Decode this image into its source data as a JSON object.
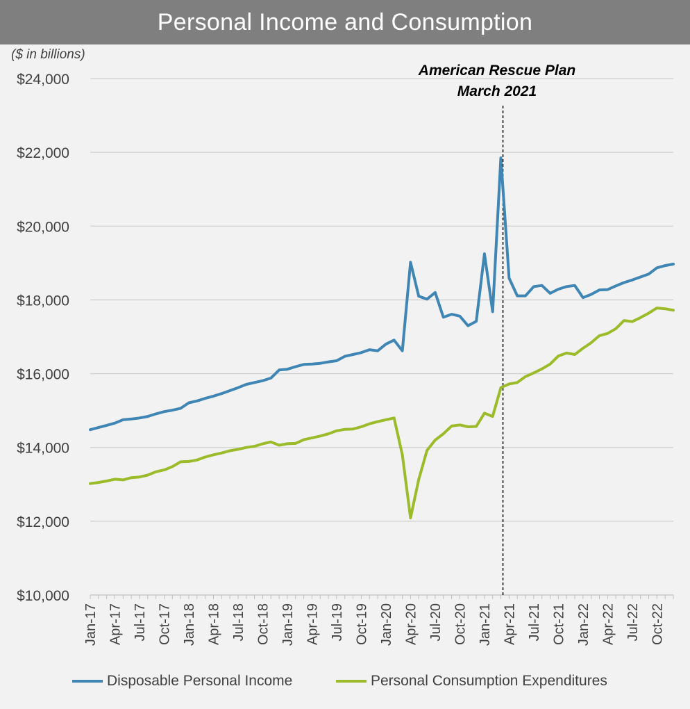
{
  "chart_data": {
    "type": "line",
    "title": "Personal Income and Consumption",
    "units_note": "($ in billions)",
    "ylim": [
      10000,
      24000
    ],
    "y_ticks": [
      10000,
      12000,
      14000,
      16000,
      18000,
      20000,
      22000,
      24000
    ],
    "y_tick_labels": [
      "$10,000",
      "$12,000",
      "$14,000",
      "$16,000",
      "$18,000",
      "$20,000",
      "$22,000",
      "$24,000"
    ],
    "x_tick_labels": [
      "Jan-17",
      "Apr-17",
      "Jul-17",
      "Oct-17",
      "Jan-18",
      "Apr-18",
      "Jul-18",
      "Oct-18",
      "Jan-19",
      "Apr-19",
      "Jul-19",
      "Oct-19",
      "Jan-20",
      "Apr-20",
      "Jul-20",
      "Oct-20",
      "Jan-21",
      "Apr-21",
      "Jul-21",
      "Oct-21",
      "Jan-22",
      "Apr-22",
      "Jul-22",
      "Oct-22"
    ],
    "months": 72,
    "grid": true,
    "legend_placement": "bottom",
    "annotation": {
      "line1": "American Rescue Plan",
      "line2": "March 2021",
      "month_index": 50
    },
    "series": [
      {
        "name": "Disposable Personal Income",
        "color": "#3f86b5",
        "values": [
          14480,
          14540,
          14600,
          14660,
          14750,
          14770,
          14800,
          14840,
          14910,
          14970,
          15010,
          15060,
          15210,
          15260,
          15330,
          15390,
          15460,
          15540,
          15620,
          15710,
          15760,
          15810,
          15880,
          16100,
          16120,
          16190,
          16250,
          16260,
          16280,
          16320,
          16350,
          16470,
          16520,
          16570,
          16650,
          16620,
          16800,
          16910,
          16620,
          19020,
          18100,
          18020,
          18200,
          17530,
          17610,
          17560,
          17300,
          17420,
          19250,
          17680,
          21850,
          18590,
          18110,
          18110,
          18360,
          18390,
          18180,
          18290,
          18360,
          18390,
          18060,
          18150,
          18270,
          18280,
          18380,
          18470,
          18540,
          18620,
          18700,
          18870,
          18930,
          18970
        ]
      },
      {
        "name": "Personal Consumption Expenditures",
        "color": "#9bbb2a",
        "values": [
          13020,
          13050,
          13090,
          13140,
          13120,
          13180,
          13200,
          13250,
          13340,
          13390,
          13480,
          13610,
          13620,
          13660,
          13740,
          13800,
          13850,
          13910,
          13950,
          14000,
          14030,
          14100,
          14150,
          14060,
          14100,
          14110,
          14210,
          14260,
          14310,
          14370,
          14450,
          14490,
          14500,
          14560,
          14640,
          14700,
          14750,
          14800,
          13800,
          12090,
          13130,
          13920,
          14200,
          14370,
          14580,
          14610,
          14560,
          14570,
          14930,
          14840,
          15620,
          15720,
          15760,
          15920,
          16020,
          16130,
          16260,
          16480,
          16560,
          16520,
          16690,
          16840,
          17030,
          17090,
          17220,
          17440,
          17410,
          17520,
          17640,
          17780,
          17760,
          17720
        ]
      }
    ]
  }
}
